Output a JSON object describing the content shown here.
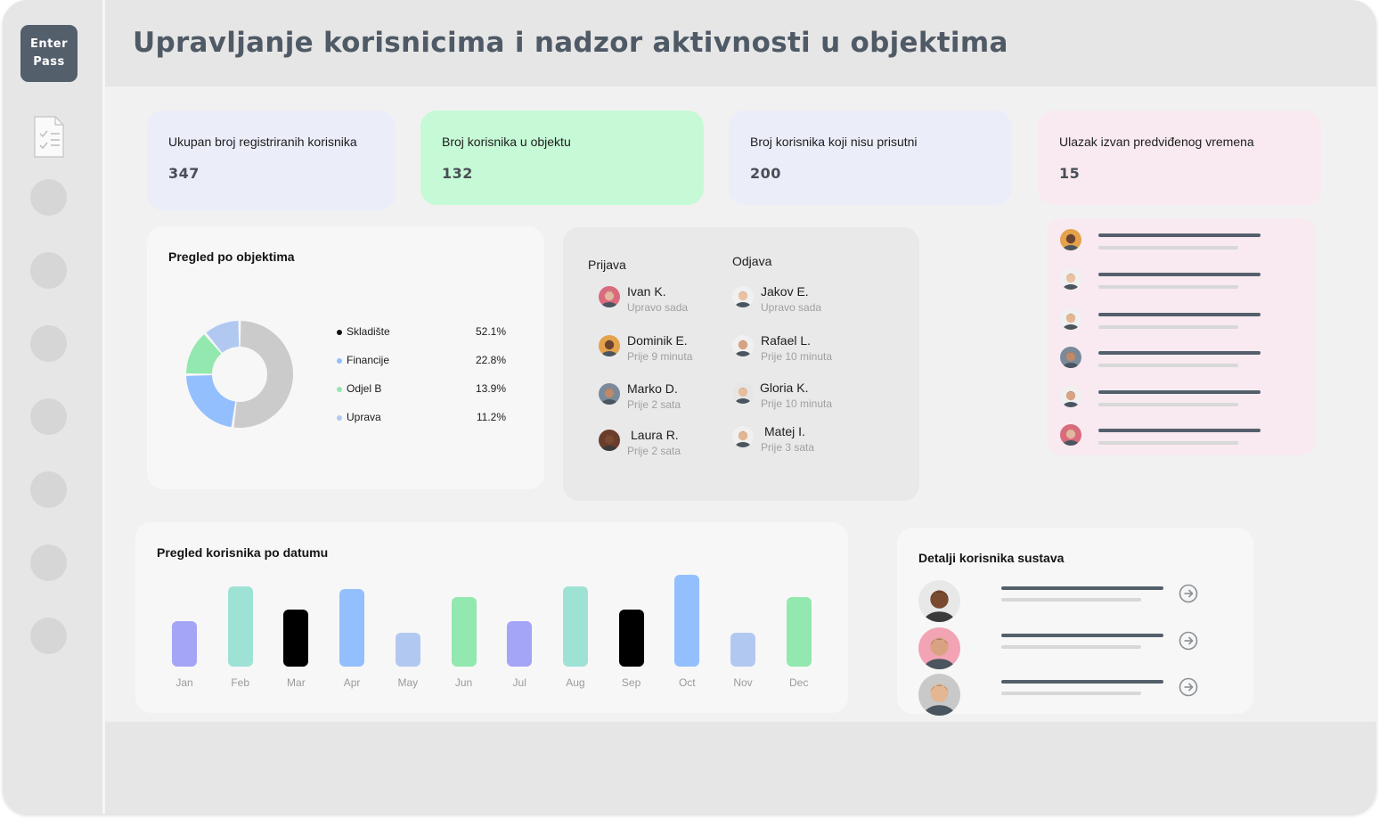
{
  "sidebar": {
    "logo": {
      "line1": "Enter",
      "line2": "Pass"
    },
    "icons": [
      "document-checklist-icon"
    ],
    "nav_dots": 7
  },
  "header": {
    "title": "Upravljanje korisnicima i nadzor aktivnosti u objektima"
  },
  "stats": [
    {
      "label": "Ukupan broj registriranih korisnika",
      "value": "347",
      "color": "#ebedf9"
    },
    {
      "label": "Broj korisnika u objektu",
      "value": "132",
      "color": "#c6fad6"
    },
    {
      "label": "Broj korisnika koji nisu prisutni",
      "value": "200",
      "color": "#ebedf9"
    },
    {
      "label": "Ulazak izvan predviđenog vremena",
      "value": "15",
      "color": "#f8eaf0"
    }
  ],
  "donut": {
    "title": "Pregled po objektima",
    "chart_data": {
      "type": "pie",
      "title": "Pregled po objektima",
      "series": [
        {
          "name": "Skladište",
          "value": 52.1,
          "label": "52.1%",
          "color": "#cbcbcb",
          "dot": "#111111"
        },
        {
          "name": "Financije",
          "value": 22.8,
          "label": "22.8%",
          "color": "#93bfff",
          "dot": "#93bfff"
        },
        {
          "name": "Odjel B",
          "value": 13.9,
          "label": "13.9%",
          "color": "#92e8ae",
          "dot": "#92e8ae"
        },
        {
          "name": "Uprava",
          "value": 11.2,
          "label": "11.2%",
          "color": "#b1c9f1",
          "dot": "#b1c9f1"
        }
      ]
    }
  },
  "activity": {
    "checkin_title": "Prijava",
    "checkout_title": "Odjava",
    "checkin": [
      {
        "name": "Ivan K.",
        "time": "Upravo sada"
      },
      {
        "name": "Dominik E.",
        "time": "Prije 9 minuta"
      },
      {
        "name": "Marko D.",
        "time": "Prije 2 sata"
      },
      {
        "name": "Laura R.",
        "time": "Prije 2 sata"
      }
    ],
    "checkout": [
      {
        "name": "Jakov E.",
        "time": "Upravo sada"
      },
      {
        "name": "Rafael L.",
        "time": "Prije 10 minuta"
      },
      {
        "name": "Gloria K.",
        "time": "Prije 10 minuta"
      },
      {
        "name": "Matej I.",
        "time": "Prije 3 sata"
      }
    ]
  },
  "bar_chart": {
    "title": "Pregled korisnika po datumu",
    "chart_data": {
      "type": "bar",
      "title": "Pregled korisnika po datumu",
      "categories": [
        "Jan",
        "Feb",
        "Mar",
        "Apr",
        "May",
        "Jun",
        "Jul",
        "Aug",
        "Sep",
        "Oct",
        "Nov",
        "Dec"
      ],
      "values": [
        50,
        88,
        63,
        85,
        37,
        76,
        50,
        88,
        63,
        101,
        37,
        76
      ],
      "colors": [
        "#a5a5f6",
        "#9ee2d6",
        "#000000",
        "#93bfff",
        "#b1c9f1",
        "#92e8ae",
        "#a5a5f6",
        "#9ee2d6",
        "#000000",
        "#93bfff",
        "#b1c9f1",
        "#92e8ae"
      ],
      "ylim": [
        0,
        101
      ],
      "grid": false
    }
  },
  "users": {
    "title": "Detalji korisnika sustava",
    "rows": 3
  },
  "late_list": {
    "rows": 6
  }
}
